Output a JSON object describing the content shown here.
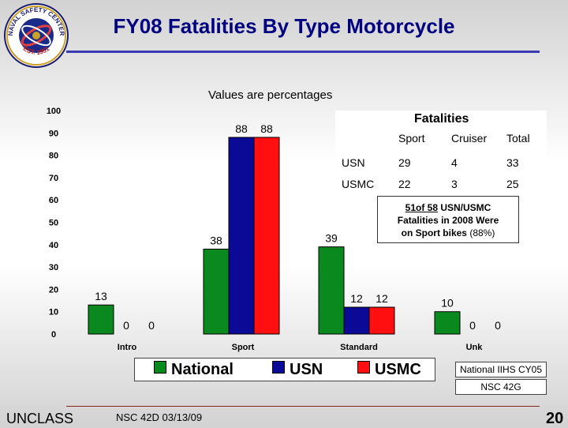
{
  "title": "FY08 Fatalities By Type Motorcycle",
  "subtitle": "Values are percentages",
  "logo": {
    "top_text": "NAVAL SAFETY CENTER",
    "bottom_text": "EST. 1951"
  },
  "colors": {
    "national": "#0a8a1e",
    "usn": "#0a0a96",
    "usmc": "#ff0f0f",
    "title": "#000080"
  },
  "chart_data": {
    "type": "bar",
    "categories": [
      "Intro",
      "Sport",
      "Standard",
      "Unk"
    ],
    "series": [
      {
        "name": "National",
        "values": [
          13,
          38,
          39,
          10
        ]
      },
      {
        "name": "USN",
        "values": [
          0,
          88,
          12,
          0
        ]
      },
      {
        "name": "USMC",
        "values": [
          0,
          88,
          12,
          0
        ]
      }
    ],
    "ylim": [
      0,
      100
    ],
    "yticks": [
      "0",
      "10",
      "20",
      "30",
      "40",
      "50",
      "60",
      "70",
      "80",
      "90",
      "100"
    ],
    "grid": false,
    "legend_position": "bottom"
  },
  "fatalities_table": {
    "title": "Fatalities",
    "columns": [
      "Sport",
      "Cruiser",
      "Total"
    ],
    "rows": [
      {
        "label": "USN",
        "values": [
          "29",
          "4",
          "33"
        ]
      },
      {
        "label": "USMC",
        "values": [
          "22",
          "3",
          "25"
        ]
      }
    ]
  },
  "note": {
    "line1_a": "51of 58",
    "line1_b": " USN/USMC",
    "line2": "Fatalities in 2008 Were",
    "line3_a": "on Sport bikes ",
    "line3_b": "(88%)"
  },
  "legend": [
    "National",
    "USN",
    "USMC"
  ],
  "source_1": "National IIHS CY05",
  "source_2": "NSC 42G",
  "footer": {
    "classification": "UNCLASS",
    "doc": "NSC 42D 03/13/09",
    "page": "20"
  }
}
